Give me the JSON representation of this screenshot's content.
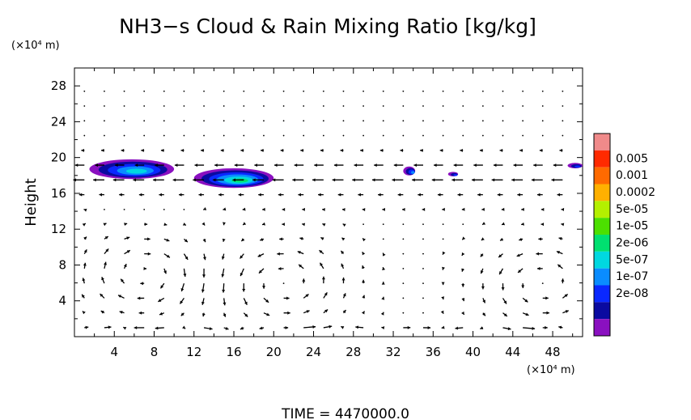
{
  "chart_data": {
    "type": "contour-vector",
    "title": "NH3−s Cloud & Rain Mixing Ratio [kg/kg]",
    "ylabel": "Height",
    "y_unit": "(×10⁴ m)",
    "x_unit": "(×10⁴ m)",
    "xlim": [
      0,
      51
    ],
    "ylim": [
      0,
      30
    ],
    "x_ticks": [
      4,
      8,
      12,
      16,
      20,
      24,
      28,
      32,
      36,
      40,
      44,
      48
    ],
    "y_ticks": [
      4,
      8,
      12,
      16,
      20,
      24,
      28
    ],
    "time_label": "TIME  =  4470000.0",
    "colorbar": {
      "labels": [
        "0.005",
        "0.001",
        "0.0002",
        "5e-05",
        "1e-05",
        "2e-06",
        "5e-07",
        "1e-07",
        "2e-08"
      ],
      "colors": [
        "#f08a8a",
        "#ff2a00",
        "#ff6a00",
        "#ffb000",
        "#b4f000",
        "#4ce000",
        "#00e070",
        "#00d8e0",
        "#0a8cff",
        "#0a28ff",
        "#0a0aa0",
        "#8a10c0"
      ]
    },
    "cloud_patches": [
      {
        "x": [
          1.5,
          10
        ],
        "y": [
          17.6,
          19.8
        ],
        "max_level": "2e-06"
      },
      {
        "x": [
          12,
          20
        ],
        "y": [
          16.6,
          18.8
        ],
        "max_level": "1e-05"
      },
      {
        "x": [
          33,
          34.2
        ],
        "y": [
          18.0,
          19.0
        ],
        "max_level": "5e-07"
      },
      {
        "x": [
          37.5,
          38.5
        ],
        "y": [
          17.9,
          18.4
        ],
        "max_level": "1e-07"
      },
      {
        "x": [
          49.5,
          51
        ],
        "y": [
          18.8,
          19.4
        ],
        "max_level": "1e-07"
      }
    ],
    "vector_field": {
      "description": "wind vectors",
      "circulation_cells": [
        {
          "center_x": 7,
          "center_y": 7,
          "sense": "clockwise"
        },
        {
          "center_x": 21,
          "center_y": 6,
          "sense": "counterclockwise"
        },
        {
          "center_x": 47,
          "center_y": 6,
          "sense": "counterclockwise"
        }
      ],
      "upper_flow": "westward (leftward) near 16–20"
    }
  }
}
